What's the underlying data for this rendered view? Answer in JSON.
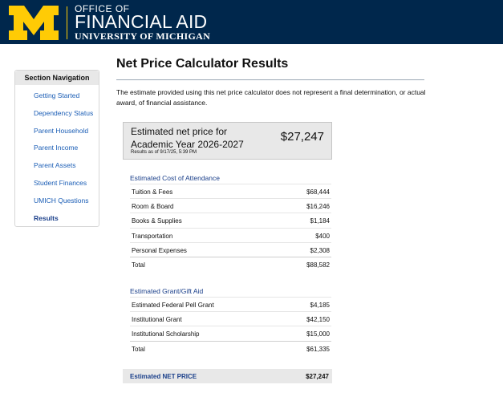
{
  "header": {
    "logo_icon": "block-m-logo",
    "office_of": "OFFICE OF",
    "title": "FINANCIAL AID",
    "university": "UNIVERSITY OF MICHIGAN",
    "colors": {
      "navy": "#00274c",
      "maize": "#ffcb05"
    }
  },
  "sidebar": {
    "heading": "Section Navigation",
    "items": [
      {
        "label": "Getting Started"
      },
      {
        "label": "Dependency Status"
      },
      {
        "label": "Parent Household"
      },
      {
        "label": "Parent Income"
      },
      {
        "label": "Parent Assets"
      },
      {
        "label": "Student Finances"
      },
      {
        "label": "UMICH Questions"
      },
      {
        "label": "Results",
        "active": true
      }
    ]
  },
  "main": {
    "title": "Net Price Calculator Results",
    "disclaimer": "The estimate provided using this net price calculator does not represent a final determination, or actual award, of financial assistance.",
    "summary": {
      "label": "Estimated net price for Academic Year 2026-2027",
      "value": "$27,247",
      "timestamp": "Results as of 9/17/25, 5:39 PM"
    },
    "cost": {
      "title": "Estimated Cost of Attendance",
      "rows": [
        {
          "label": "Tuition & Fees",
          "value": "$68,444"
        },
        {
          "label": "Room & Board",
          "value": "$16,246"
        },
        {
          "label": "Books & Supplies",
          "value": "$1,184"
        },
        {
          "label": "Transportation",
          "value": "$400"
        },
        {
          "label": "Personal Expenses",
          "value": "$2,308"
        }
      ],
      "total_label": "Total",
      "total_value": "$88,582"
    },
    "aid": {
      "title": "Estimated Grant/Gift Aid",
      "rows": [
        {
          "label": "Estimated Federal Pell Grant",
          "value": "$4,185"
        },
        {
          "label": "Institutional Grant",
          "value": "$42,150"
        },
        {
          "label": "Institutional Scholarship",
          "value": "$15,000"
        }
      ],
      "total_label": "Total",
      "total_value": "$61,335"
    },
    "net": {
      "label": "Estimated NET PRICE",
      "value": "$27,247"
    }
  }
}
